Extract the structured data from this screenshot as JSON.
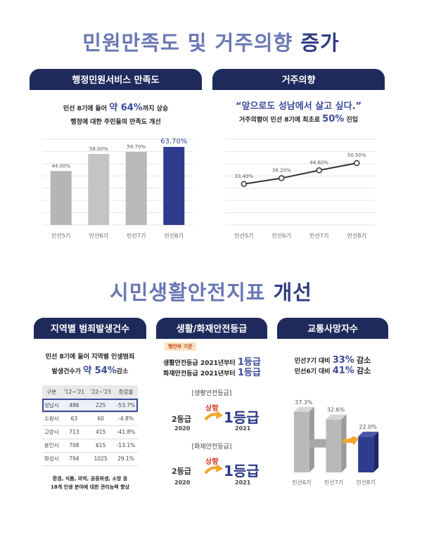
{
  "section1": {
    "title_a": "민원만족도 및 거주의향",
    "title_b": "증가"
  },
  "section2": {
    "title_a": "시민생활안전지표",
    "title_b": "개선"
  },
  "panel_satisfaction": {
    "tab": "행정민원서비스 만족도",
    "line1_pre": "민선 8기에 들어",
    "line1_big": "약 64%",
    "line1_post": "까지 상승",
    "line2": "행정에 대한 주민들의 만족도 개선"
  },
  "panel_residence": {
    "tab": "거주의향",
    "quote": "“앞으로도 성남에서 살고 싶다.”",
    "line_pre": "거주의향이 민선 8기에 최초로",
    "line_big": "50%",
    "line_post": "진입"
  },
  "panel_crime": {
    "tab": "지역별 범죄발생건수",
    "line1": "민선 8기에 들어 지역별 인생범죄",
    "line2_pre": "발생건수가",
    "line2_big": "약 54%",
    "line2_post": "감소",
    "table_header": [
      "구분",
      "'12~'21",
      "'22~'23",
      "증감율"
    ],
    "table_rows": [
      [
        "성남시",
        "486",
        "225",
        "-53.7%"
      ],
      [
        "수원시",
        "63",
        "60",
        "-4.8%"
      ],
      [
        "고양시",
        "713",
        "415",
        "-41.8%"
      ],
      [
        "용인시",
        "708",
        "615",
        "-13.1%"
      ],
      [
        "화성시",
        "794",
        "1025",
        "29.1%"
      ]
    ],
    "note1": "환경, 식품, 의약, 공중위생, 소방 등",
    "note2": "18개 인생 분야에 대한 관리능력 향상"
  },
  "panel_safety": {
    "tab": "생활/화재안전등급",
    "badge": "행안부 기준",
    "line1_pre": "생활안전등급 2021년부터",
    "line1_big": "1등급",
    "line2_pre": "화재안전등급 2021년부터",
    "line2_big": "1등급",
    "life_label": "[생활안전등급]",
    "fire_label": "[화재안전등급]",
    "from_grade": "2등급",
    "up": "상향",
    "to_grade": "1등급",
    "year_from": "2020",
    "year_to": "2021"
  },
  "panel_traffic": {
    "tab": "교통사망자수",
    "line1_pre": "민선7기 대비",
    "line1_big": "33%",
    "line1_post": "감소",
    "line2_pre": "민선6기 대비",
    "line2_big": "41%",
    "line2_post": "감소"
  },
  "chart_data": [
    {
      "type": "bar",
      "categories": [
        "민선5기",
        "민선6기",
        "민선7기",
        "민선8기"
      ],
      "values": [
        44.0,
        58.0,
        59.7,
        63.7
      ],
      "labels": [
        "44.00%",
        "58.00%",
        "59.70%",
        "63.70%"
      ],
      "ylim": [
        0,
        70
      ],
      "grid": true,
      "colors": [
        "#b5b5b5",
        "#c4c4c4",
        "#b9b9b9",
        "#2f3b8c"
      ]
    },
    {
      "type": "line",
      "categories": [
        "민선5기",
        "민선6기",
        "민선7기",
        "민선8기"
      ],
      "values": [
        33.4,
        38.2,
        44.6,
        50.5
      ],
      "labels": [
        "33.40%",
        "38.20%",
        "44.60%",
        "50.50%"
      ],
      "ylim": [
        0,
        70
      ],
      "grid": true,
      "colors": [
        "#333333"
      ]
    },
    {
      "type": "bar",
      "categories": [
        "민선6기",
        "민선7기",
        "민선8기"
      ],
      "values": [
        37.3,
        32.6,
        22.0
      ],
      "labels": [
        "37.3%",
        "32.6%",
        "22.0%"
      ],
      "ylim": [
        0,
        45
      ],
      "colors": [
        "#b9b9b9",
        "#b9b9b9",
        "#2f3b8c"
      ]
    }
  ]
}
